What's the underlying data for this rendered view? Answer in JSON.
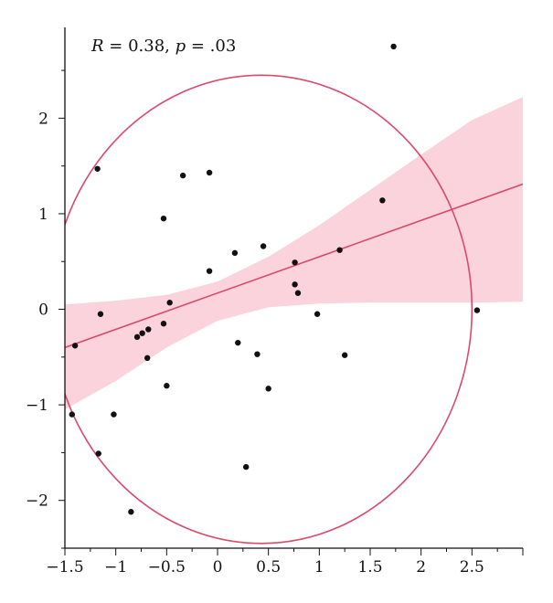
{
  "chart_data": {
    "type": "scatter",
    "title": "",
    "xlabel": "",
    "ylabel": "",
    "xlim": [
      -1.5,
      3.0
    ],
    "ylim": [
      -2.5,
      2.95
    ],
    "xticks": [
      -1.5,
      -1,
      -0.5,
      0,
      0.5,
      1,
      1.5,
      2,
      2.5
    ],
    "xtick_labels": [
      "−1.5",
      "−1",
      "−0.5",
      "0",
      "0.5",
      "1",
      "1.5",
      "2",
      "2.5"
    ],
    "yticks": [
      -2,
      -1,
      0,
      1,
      2
    ],
    "ytick_labels": [
      "−2",
      "−1",
      "0",
      "1",
      "2"
    ],
    "annotation": {
      "r_label": "R",
      "r_rest": " = 0.38, ",
      "p_label": "p",
      "p_rest": " = .03"
    },
    "colors": {
      "points": "#111111",
      "fit_line": "#d94a6b",
      "ci_band": "#fbd3dd",
      "ellipse": "#d94a6b"
    },
    "points": [
      {
        "x": 1.73,
        "y": 2.75
      },
      {
        "x": -1.18,
        "y": 1.47
      },
      {
        "x": -0.08,
        "y": 1.43
      },
      {
        "x": -0.34,
        "y": 1.4
      },
      {
        "x": 1.62,
        "y": 1.14
      },
      {
        "x": -0.53,
        "y": 0.95
      },
      {
        "x": 0.45,
        "y": 0.66
      },
      {
        "x": 0.17,
        "y": 0.59
      },
      {
        "x": 1.2,
        "y": 0.62
      },
      {
        "x": 0.76,
        "y": 0.49
      },
      {
        "x": -0.08,
        "y": 0.4
      },
      {
        "x": 0.76,
        "y": 0.26
      },
      {
        "x": 0.79,
        "y": 0.17
      },
      {
        "x": -0.47,
        "y": 0.07
      },
      {
        "x": 2.55,
        "y": -0.01
      },
      {
        "x": 0.98,
        "y": -0.05
      },
      {
        "x": -1.15,
        "y": -0.05
      },
      {
        "x": -0.53,
        "y": -0.15
      },
      {
        "x": -0.68,
        "y": -0.21
      },
      {
        "x": -0.74,
        "y": -0.25
      },
      {
        "x": -0.79,
        "y": -0.29
      },
      {
        "x": 0.2,
        "y": -0.35
      },
      {
        "x": -1.4,
        "y": -0.38
      },
      {
        "x": 0.39,
        "y": -0.47
      },
      {
        "x": 1.25,
        "y": -0.48
      },
      {
        "x": -0.69,
        "y": -0.51
      },
      {
        "x": -0.5,
        "y": -0.8
      },
      {
        "x": 0.5,
        "y": -0.83
      },
      {
        "x": -1.43,
        "y": -1.1
      },
      {
        "x": -1.02,
        "y": -1.1
      },
      {
        "x": -1.17,
        "y": -1.51
      },
      {
        "x": 0.28,
        "y": -1.65
      },
      {
        "x": -0.85,
        "y": -2.12
      }
    ],
    "fit_line": {
      "intercept": 0.17,
      "slope": 0.38
    },
    "ci_band": [
      {
        "x": -1.5,
        "lower": -1.05,
        "upper": 0.05
      },
      {
        "x": -1.0,
        "lower": -0.75,
        "upper": 0.09
      },
      {
        "x": -0.5,
        "lower": -0.4,
        "upper": 0.15
      },
      {
        "x": 0.0,
        "lower": -0.12,
        "upper": 0.29
      },
      {
        "x": 0.5,
        "lower": 0.02,
        "upper": 0.55
      },
      {
        "x": 1.0,
        "lower": 0.06,
        "upper": 0.88
      },
      {
        "x": 1.5,
        "lower": 0.07,
        "upper": 1.25
      },
      {
        "x": 2.0,
        "lower": 0.07,
        "upper": 1.62
      },
      {
        "x": 2.5,
        "lower": 0.07,
        "upper": 1.98
      },
      {
        "x": 3.0,
        "lower": 0.08,
        "upper": 2.22
      }
    ],
    "ellipse": {
      "cx": 0.43,
      "cy": 0.0,
      "rx": 2.07,
      "ry": 2.45,
      "angle_deg": 0
    }
  }
}
